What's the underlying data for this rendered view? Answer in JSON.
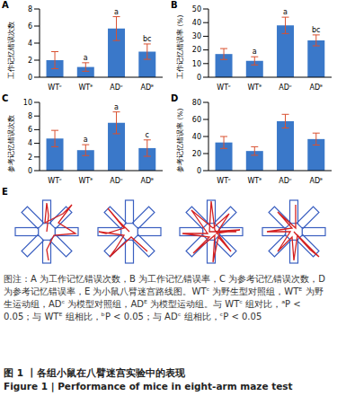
{
  "chart_data": [
    {
      "type": "bar",
      "panel_label": "A",
      "ylabel": "工作记忆错误次数",
      "categories": [
        "WTᶜ",
        "WTᴱ",
        "ADᶜ",
        "ADᴱ"
      ],
      "values": [
        2.0,
        1.2,
        5.7,
        3.0
      ],
      "errors": [
        1.0,
        0.5,
        1.4,
        0.9
      ],
      "annotations": [
        null,
        "a",
        "a",
        "bc"
      ],
      "color": "#3a78c9",
      "ylim": [
        0,
        8
      ],
      "yticks": [
        0,
        2,
        4,
        6,
        8
      ],
      "grid": false
    },
    {
      "type": "bar",
      "panel_label": "B",
      "ylabel": "工作记忆错误率 (%)",
      "categories": [
        "WTᶜ",
        "WTᴱ",
        "ADᶜ",
        "ADᴱ"
      ],
      "values": [
        17,
        12,
        38,
        27
      ],
      "errors": [
        4,
        3,
        6,
        4
      ],
      "annotations": [
        null,
        "a",
        "a",
        "bc"
      ],
      "color": "#3a78c9",
      "ylim": [
        0,
        50
      ],
      "yticks": [
        0,
        10,
        20,
        30,
        40,
        50
      ],
      "grid": false
    },
    {
      "type": "bar",
      "panel_label": "C",
      "ylabel": "参考记忆错误次数",
      "categories": [
        "WTᶜ",
        "WTᴱ",
        "ADᶜ",
        "ADᴱ"
      ],
      "values": [
        4.7,
        3.0,
        7.0,
        3.3
      ],
      "errors": [
        1.2,
        0.8,
        1.6,
        1.2
      ],
      "annotations": [
        null,
        "a",
        "a",
        "c"
      ],
      "color": "#3a78c9",
      "ylim": [
        0,
        10
      ],
      "yticks": [
        0,
        2,
        4,
        6,
        8,
        10
      ],
      "grid": false
    },
    {
      "type": "bar",
      "panel_label": "D",
      "ylabel": "参考记忆错误率 (%)",
      "categories": [
        "WTᶜ",
        "WTᴱ",
        "ADᶜ",
        "ADᴱ"
      ],
      "values": [
        33,
        23,
        58,
        37
      ],
      "errors": [
        7,
        5,
        8,
        7
      ],
      "color": "#3a78c9",
      "ylim": [
        0,
        80
      ],
      "yticks": [
        0,
        20,
        40,
        60,
        80
      ],
      "grid": false
    }
  ],
  "maze_panel": {
    "label": "E"
  },
  "caption": "图注：A 为工作记忆错误次数，B 为工作记忆错误率，C 为参考记忆错误次数，D 为参考记忆错误率，E 为小鼠八臂迷宫路线图。WTᶜ 为野生型对照组，WTᴱ 为野生运动组，ADᶜ 为模型对照组，ADᴱ 为模型运动组。与 WTᶜ 组对比，ᵃP < 0.05；与 WTᴱ 组相比，ᵇP < 0.05；与 ADᶜ 组相比，ᶜP < 0.05",
  "figure_title": {
    "zh": "图 1 丨各组小鼠在八臂迷宫实验中的表现",
    "en": "Figure 1 | Performance of mice in eight-arm maze test"
  }
}
